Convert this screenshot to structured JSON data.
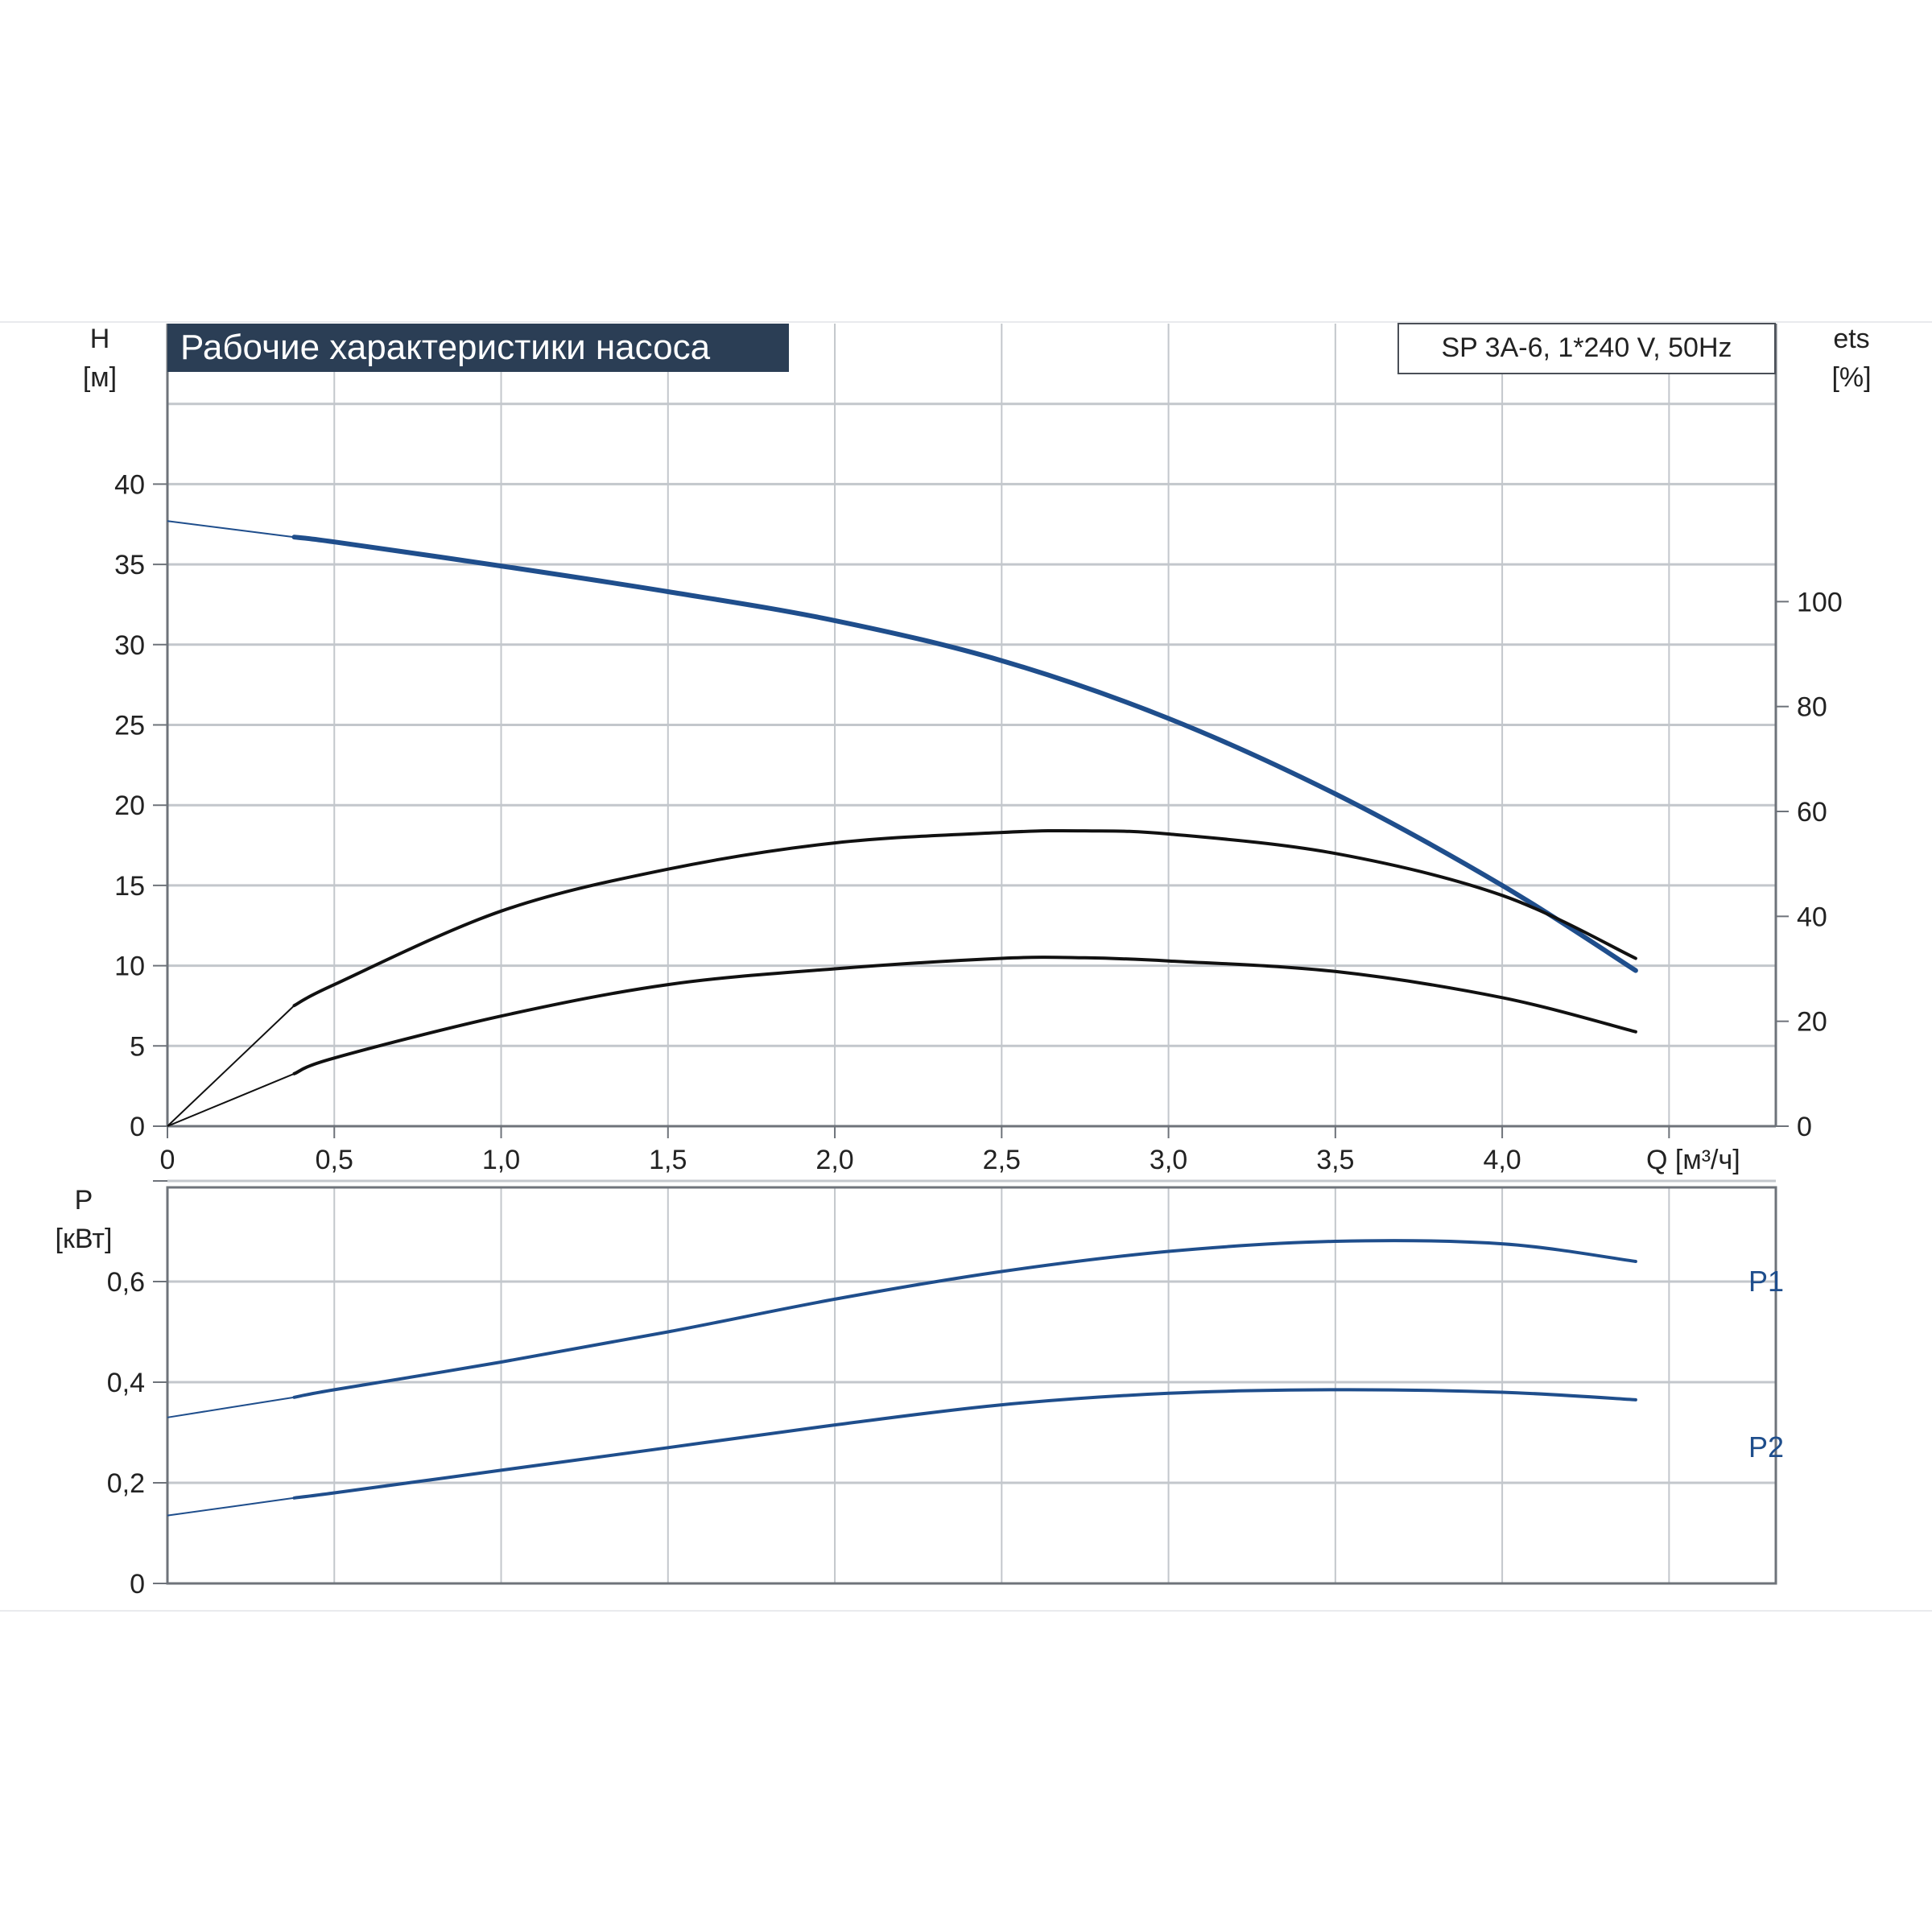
{
  "chart_data": [
    {
      "type": "line",
      "title": "Рабочие характеристики насоса",
      "model_label": "SP 3A-6, 1*240 V, 50Hz",
      "y_label": "H",
      "y_unit": "[м]",
      "y2_label": "ets",
      "y2_unit": "[%]",
      "x_label": "Q [м³/ч]",
      "xlim": [
        0,
        4.82
      ],
      "ylim": [
        0,
        50
      ],
      "y2lim": [
        0,
        153
      ],
      "x_ticks": [
        "0",
        "0,5",
        "1,0",
        "1,5",
        "2,0",
        "2,5",
        "3,0",
        "3,5",
        "4,0"
      ],
      "y_ticks": [
        "0",
        "5",
        "10",
        "15",
        "20",
        "25",
        "30",
        "35",
        "40"
      ],
      "y2_ticks": [
        "0",
        "20",
        "40",
        "60",
        "80",
        "100"
      ],
      "grid": true,
      "series": [
        {
          "role": "head",
          "axis": "left",
          "color": "#1f4e8c",
          "x": [
            0,
            0.38,
            0.5,
            1.0,
            1.5,
            2.0,
            2.5,
            3.0,
            3.5,
            4.0,
            4.4
          ],
          "y": [
            37.7,
            36.7,
            36.4,
            34.9,
            33.3,
            31.5,
            29.0,
            25.4,
            20.7,
            15.0,
            9.7
          ]
        },
        {
          "role": "efficiency-upper",
          "axis": "right",
          "color": "#111111",
          "x": [
            0,
            0.38,
            0.5,
            1.0,
            1.5,
            2.0,
            2.5,
            2.75,
            3.0,
            3.5,
            4.0,
            4.4
          ],
          "y": [
            0,
            23,
            27,
            41,
            49,
            54,
            56,
            56.3,
            55.7,
            52,
            44,
            32
          ]
        },
        {
          "role": "efficiency-lower",
          "axis": "right",
          "color": "#111111",
          "x": [
            0,
            0.38,
            0.5,
            1.0,
            1.5,
            2.0,
            2.5,
            2.75,
            3.0,
            3.5,
            4.0,
            4.4
          ],
          "y": [
            0,
            10,
            13,
            21,
            27,
            30,
            32,
            32.1,
            31.5,
            29.5,
            24.5,
            18
          ]
        }
      ]
    },
    {
      "type": "line",
      "y_label": "P",
      "y_unit": "[кВт]",
      "xlim": [
        0,
        4.82
      ],
      "ylim": [
        0,
        0.8
      ],
      "y_ticks": [
        "0",
        "0,2",
        "0,4",
        "0,6"
      ],
      "grid": true,
      "series": [
        {
          "name": "P1",
          "color": "#1f4e8c",
          "x": [
            0,
            0.38,
            0.5,
            1.0,
            1.5,
            2.0,
            2.5,
            3.0,
            3.5,
            4.0,
            4.4
          ],
          "y": [
            0.33,
            0.37,
            0.385,
            0.44,
            0.5,
            0.565,
            0.62,
            0.66,
            0.68,
            0.675,
            0.64
          ]
        },
        {
          "name": "P2",
          "color": "#1f4e8c",
          "x": [
            0,
            0.38,
            0.5,
            1.0,
            1.5,
            2.0,
            2.5,
            3.0,
            3.5,
            4.0,
            4.4
          ],
          "y": [
            0.135,
            0.17,
            0.18,
            0.225,
            0.27,
            0.315,
            0.355,
            0.378,
            0.385,
            0.38,
            0.365
          ]
        }
      ]
    }
  ]
}
